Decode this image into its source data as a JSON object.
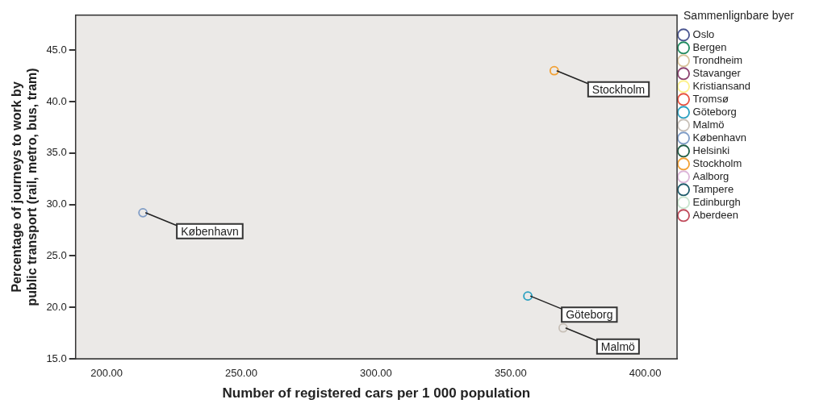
{
  "chart_data": {
    "type": "scatter",
    "xlabel": "Number of registered cars per 1 000 population",
    "ylabel": "Percentage of journeys to work by public transport (rail, metro, bus, tram)",
    "legend_title": "Sammenlignbare byer",
    "legend": "right",
    "marker": "circle",
    "grid": false,
    "xlim": [
      188.5,
      411.8
    ],
    "xticks": [
      {
        "value": 200,
        "label": "200.00"
      },
      {
        "value": 250,
        "label": "250.00"
      },
      {
        "value": 300,
        "label": "300.00"
      },
      {
        "value": 350,
        "label": "350.00"
      },
      {
        "value": 400,
        "label": "400.00"
      }
    ],
    "ylim": [
      15,
      48.4
    ],
    "yticks": [
      {
        "value": 15,
        "label": "15.0"
      },
      {
        "value": 20,
        "label": "20.0"
      },
      {
        "value": 25,
        "label": "25.0"
      },
      {
        "value": 30,
        "label": "30.0"
      },
      {
        "value": 35,
        "label": "35.0"
      },
      {
        "value": 40,
        "label": "40.0"
      },
      {
        "value": 45,
        "label": "45.0"
      }
    ],
    "series": [
      {
        "name": "Oslo",
        "color": "#4a5590"
      },
      {
        "name": "Bergen",
        "color": "#1f8a5f"
      },
      {
        "name": "Trondheim",
        "color": "#d8c39a"
      },
      {
        "name": "Stavanger",
        "color": "#8a3f6e"
      },
      {
        "name": "Kristiansand",
        "color": "#fdf28c"
      },
      {
        "name": "Tromsø",
        "color": "#e8513f"
      },
      {
        "name": "Göteborg",
        "color": "#2aa0c0",
        "x": [
          356.4
        ],
        "values": [
          21.1
        ]
      },
      {
        "name": "Malmö",
        "color": "#c8c0b8",
        "x": [
          369.5
        ],
        "values": [
          18.0
        ]
      },
      {
        "name": "København",
        "color": "#7f9cc6",
        "x": [
          213.5
        ],
        "values": [
          29.2
        ]
      },
      {
        "name": "Helsinki",
        "color": "#1e5c44"
      },
      {
        "name": "Stockholm",
        "color": "#f2a032",
        "x": [
          366.2
        ],
        "values": [
          43.0
        ]
      },
      {
        "name": "Aalborg",
        "color": "#dcb5d8"
      },
      {
        "name": "Tampere",
        "color": "#1d5a6a"
      },
      {
        "name": "Edinburgh",
        "color": "#c9e5cf"
      },
      {
        "name": "Aberdeen",
        "color": "#c04a5a"
      }
    ],
    "annotations": [
      {
        "text": "Stockholm",
        "x": 366.2,
        "y": 43.0
      },
      {
        "text": "København",
        "x": 213.5,
        "y": 29.2
      },
      {
        "text": "Göteborg",
        "x": 356.4,
        "y": 21.1
      },
      {
        "text": "Malmö",
        "x": 369.5,
        "y": 18.0
      }
    ]
  }
}
